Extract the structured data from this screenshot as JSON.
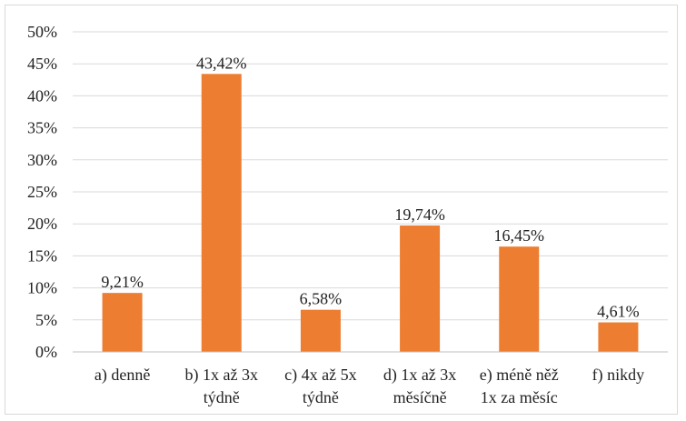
{
  "chart_data": {
    "type": "bar",
    "categories": [
      "a) denně",
      "b) 1x až 3x týdně",
      "c) 4x až 5x týdně",
      "d) 1x až 3x měsíčně",
      "e) méně něž 1x za měsíc",
      "f) nikdy"
    ],
    "category_lines": [
      [
        "a) denně"
      ],
      [
        "b) 1x až 3x",
        "týdně"
      ],
      [
        "c) 4x až 5x",
        "týdně"
      ],
      [
        "d) 1x až 3x",
        "měsíčně"
      ],
      [
        "e) méně něž",
        "1x za měsíc"
      ],
      [
        "f) nikdy"
      ]
    ],
    "values": [
      9.21,
      43.42,
      6.58,
      19.74,
      16.45,
      4.61
    ],
    "data_labels": [
      "9,21%",
      "43,42%",
      "6,58%",
      "19,74%",
      "16,45%",
      "4,61%"
    ],
    "ylim": [
      0,
      50
    ],
    "y_ticks": [
      "0%",
      "5%",
      "10%",
      "15%",
      "20%",
      "25%",
      "30%",
      "35%",
      "40%",
      "45%",
      "50%"
    ],
    "title": "",
    "xlabel": "",
    "ylabel": "",
    "grid": true,
    "legend": "none",
    "bar_color": "#ed7d31",
    "grid_color": "#d9d9d9"
  }
}
